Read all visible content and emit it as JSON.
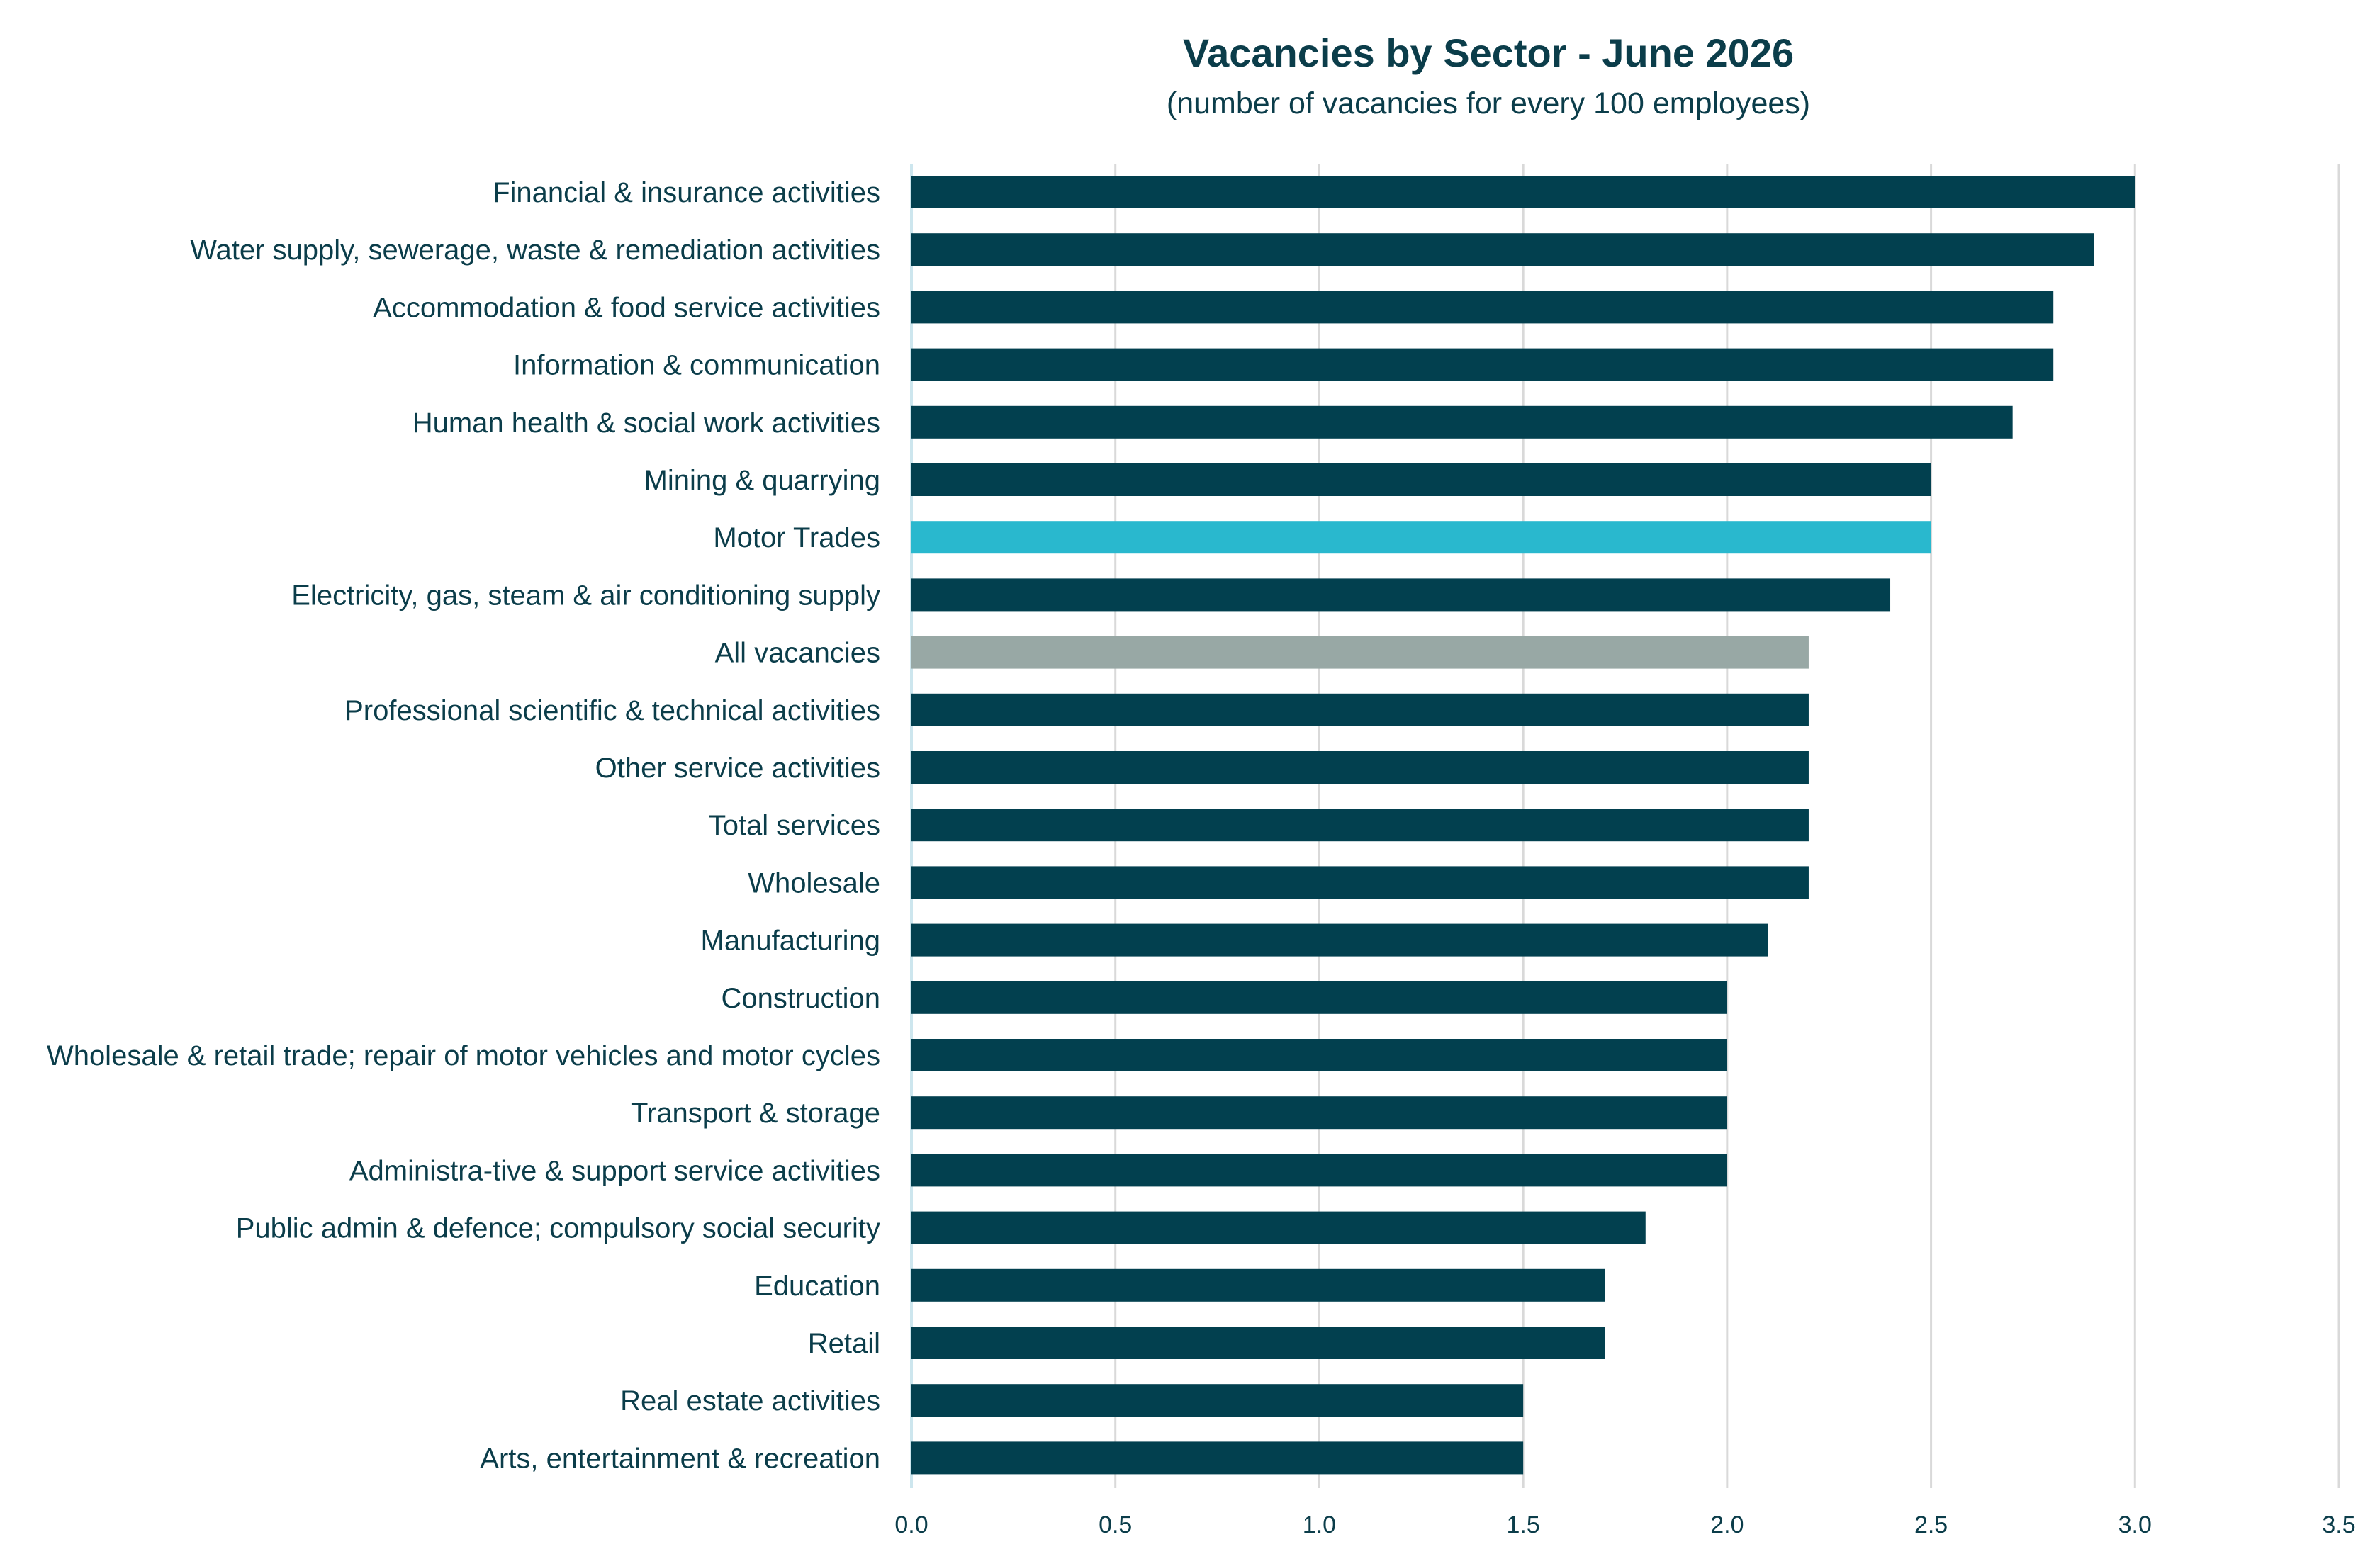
{
  "chart_data": {
    "type": "bar",
    "orientation": "horizontal",
    "title": "Vacancies by Sector - June 2026",
    "subtitle": "(number of vacancies for every 100 employees)",
    "xlabel": "",
    "ylabel": "",
    "xlim": [
      0,
      3.5
    ],
    "ticks": [
      "0.0",
      "0.5",
      "1.0",
      "1.5",
      "2.0",
      "2.5",
      "3.0",
      "3.5"
    ],
    "tick_values": [
      0,
      0.5,
      1,
      1.5,
      2,
      2.5,
      3,
      3.5
    ],
    "grid": true,
    "legend": "none",
    "colors": {
      "default": "#02404f",
      "highlight": "#29b8ce",
      "benchmark": "#98a8a5"
    },
    "categories": [
      "Financial & insurance activities",
      "Water supply, sewerage, waste & remediation activities",
      "Accommodation & food service activities",
      "Information & communication",
      "Human health & social work activities",
      "Mining & quarrying",
      "Motor Trades",
      "Electricity, gas, steam & air conditioning supply",
      "All vacancies",
      "Professional scientific & technical activities",
      "Other service activities",
      "Total services",
      "Wholesale",
      "Manufacturing",
      "Construction",
      "Wholesale & retail trade; repair of motor vehicles and motor cycles",
      "Transport & storage",
      "Administra-tive & support service activities",
      "Public admin & defence; compulsory social security",
      "Education",
      "Retail",
      "Real estate activities",
      "Arts, entertainment & recreation"
    ],
    "values": [
      3.0,
      2.9,
      2.8,
      2.8,
      2.7,
      2.5,
      2.5,
      2.4,
      2.2,
      2.2,
      2.2,
      2.2,
      2.2,
      2.1,
      2.0,
      2.0,
      2.0,
      2.0,
      1.8,
      1.7,
      1.7,
      1.5,
      1.5
    ],
    "bar_colors": [
      "default",
      "default",
      "default",
      "default",
      "default",
      "default",
      "highlight",
      "default",
      "benchmark",
      "default",
      "default",
      "default",
      "default",
      "default",
      "default",
      "default",
      "default",
      "default",
      "default",
      "default",
      "default",
      "default",
      "default"
    ]
  }
}
